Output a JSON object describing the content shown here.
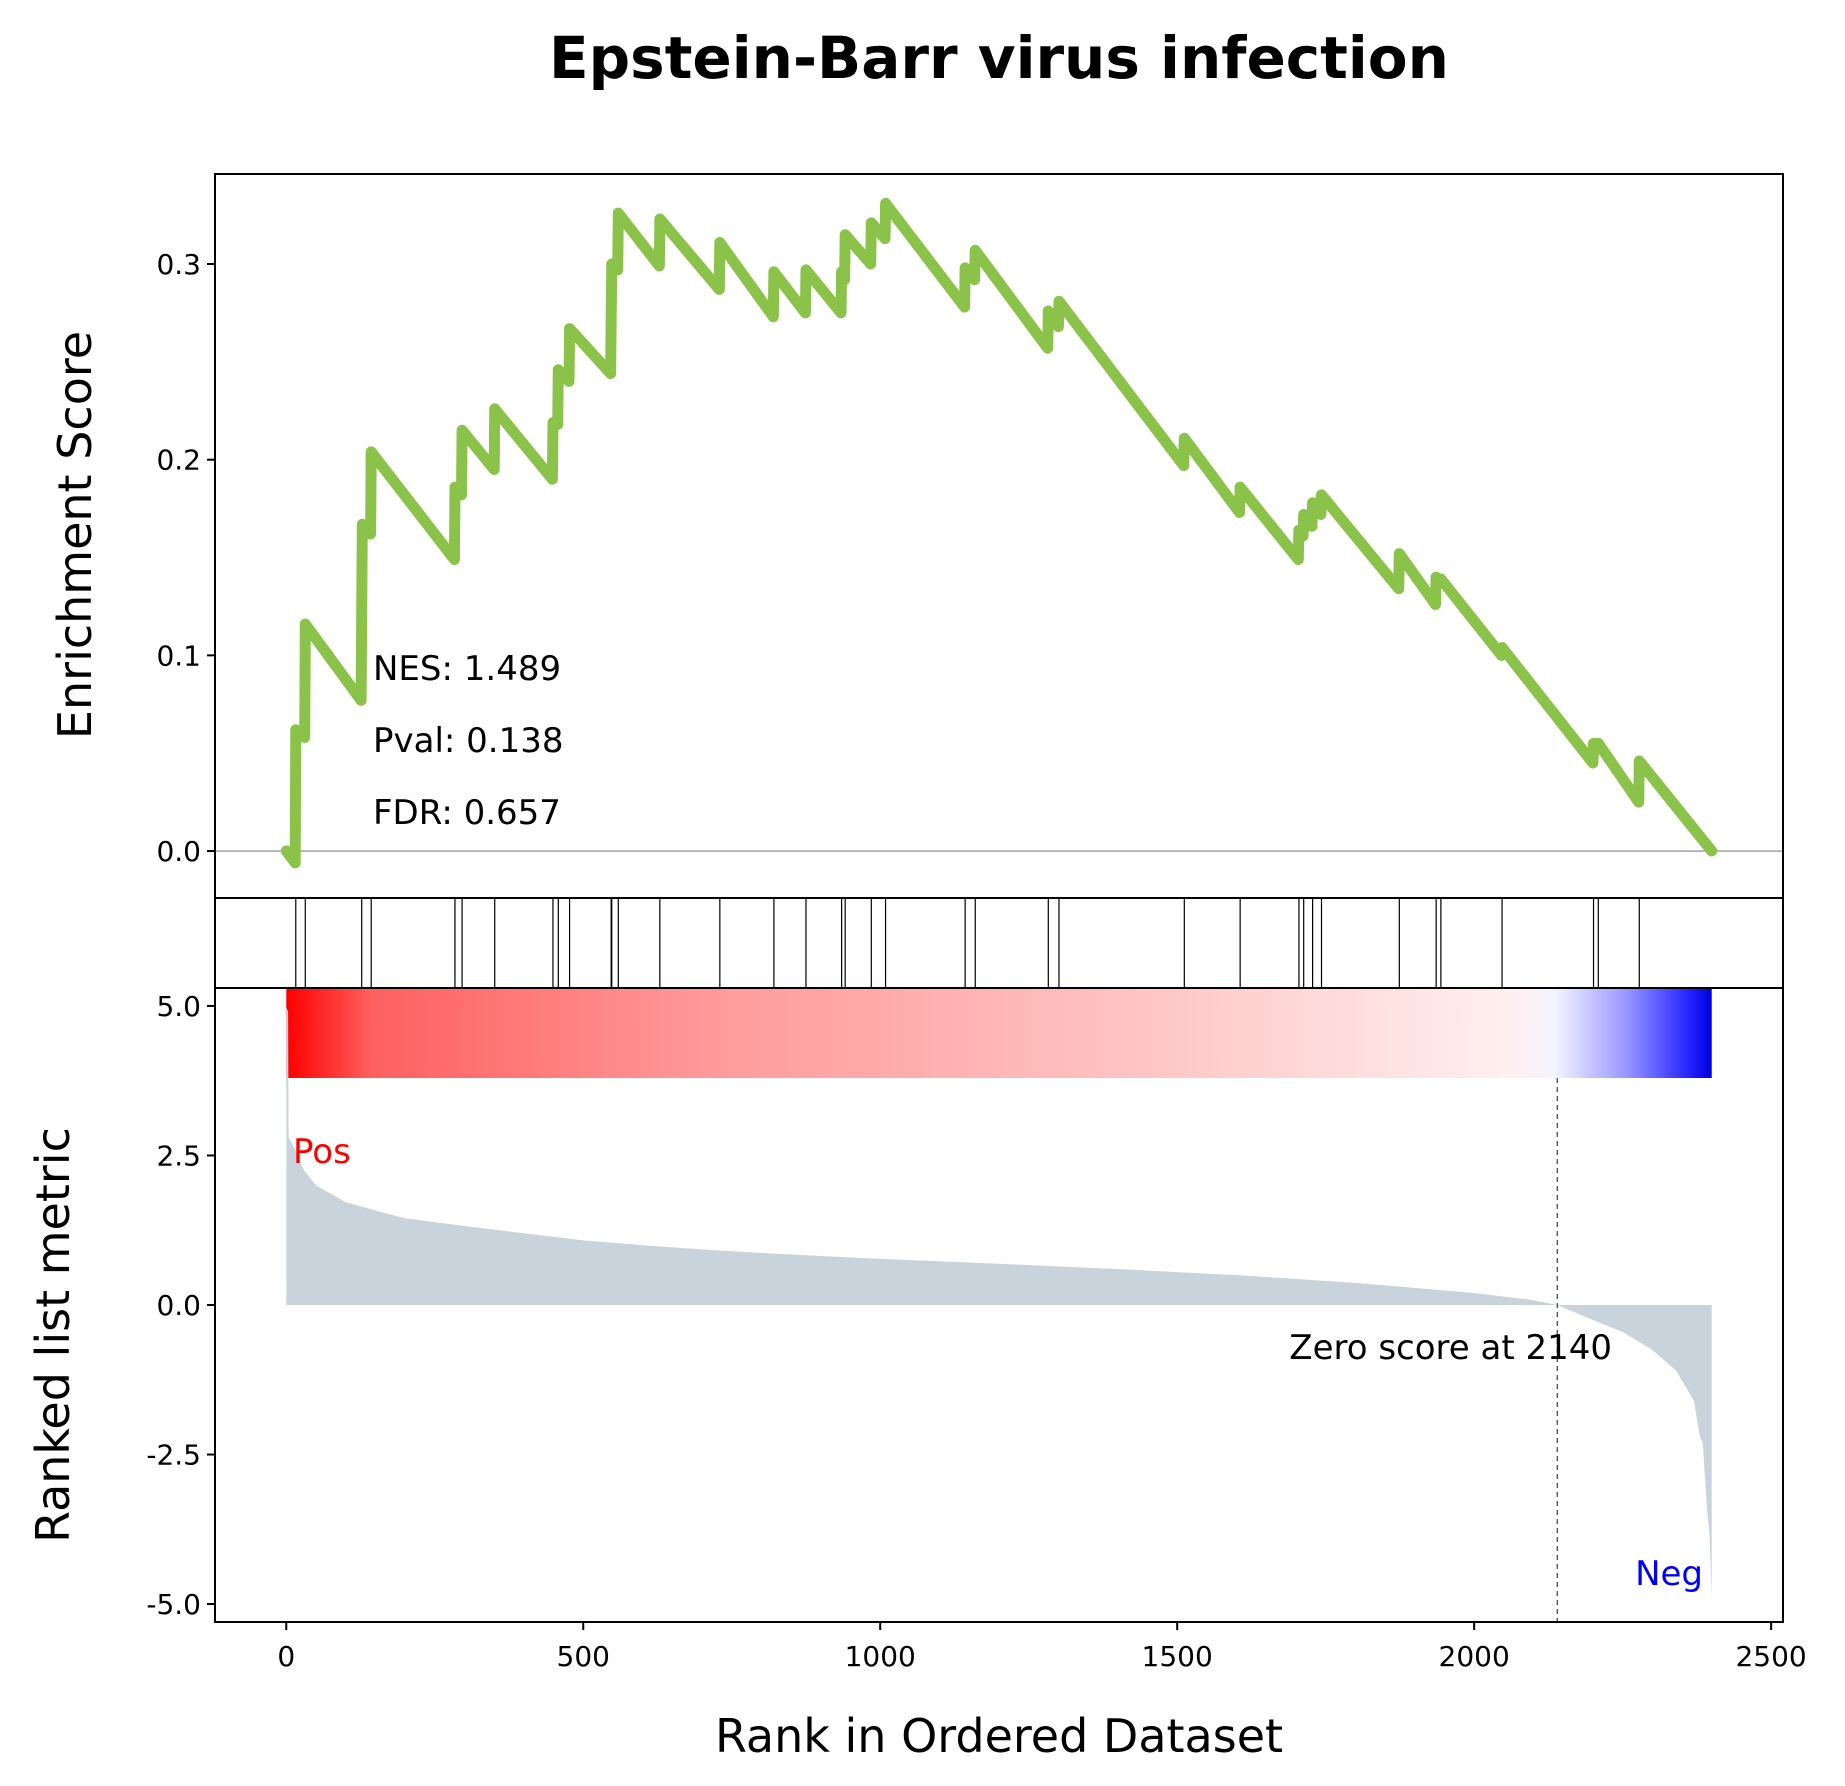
{
  "chart_data": {
    "type": "line",
    "title": "Epstein-Barr virus infection",
    "xlabel": "Rank in Ordered Dataset",
    "xlim": [
      -120,
      2520
    ],
    "xticks": [
      "0",
      "500",
      "1000",
      "1500",
      "2000",
      "2500"
    ],
    "enrichment": {
      "ylabel": "Enrichment Score",
      "ylim": [
        -0.024,
        0.346
      ],
      "yticks": [
        "0.0",
        "0.1",
        "0.2",
        "0.3"
      ],
      "line_color": "#8bc34a",
      "points": [
        [
          0,
          0.0
        ],
        [
          15,
          -0.006
        ],
        [
          16,
          0.062
        ],
        [
          31,
          0.058
        ],
        [
          32,
          0.116
        ],
        [
          126,
          0.077
        ],
        [
          127,
          0.121
        ],
        [
          128,
          0.167
        ],
        [
          142,
          0.162
        ],
        [
          143,
          0.204
        ],
        [
          283,
          0.149
        ],
        [
          284,
          0.186
        ],
        [
          295,
          0.182
        ],
        [
          296,
          0.215
        ],
        [
          350,
          0.195
        ],
        [
          351,
          0.226
        ],
        [
          448,
          0.19
        ],
        [
          449,
          0.219
        ],
        [
          457,
          0.218
        ],
        [
          458,
          0.246
        ],
        [
          476,
          0.24
        ],
        [
          477,
          0.267
        ],
        [
          546,
          0.244
        ],
        [
          547,
          0.274
        ],
        [
          548,
          0.3
        ],
        [
          558,
          0.297
        ],
        [
          559,
          0.326
        ],
        [
          628,
          0.299
        ],
        [
          629,
          0.323
        ],
        [
          729,
          0.287
        ],
        [
          730,
          0.311
        ],
        [
          820,
          0.273
        ],
        [
          821,
          0.296
        ],
        [
          874,
          0.275
        ],
        [
          875,
          0.297
        ],
        [
          934,
          0.275
        ],
        [
          935,
          0.296
        ],
        [
          940,
          0.292
        ],
        [
          941,
          0.315
        ],
        [
          984,
          0.3
        ],
        [
          985,
          0.321
        ],
        [
          1008,
          0.313
        ],
        [
          1009,
          0.331
        ],
        [
          1142,
          0.278
        ],
        [
          1143,
          0.298
        ],
        [
          1159,
          0.292
        ],
        [
          1160,
          0.307
        ],
        [
          1282,
          0.257
        ],
        [
          1283,
          0.276
        ],
        [
          1300,
          0.268
        ],
        [
          1301,
          0.281
        ],
        [
          1511,
          0.197
        ],
        [
          1512,
          0.211
        ],
        [
          1605,
          0.173
        ],
        [
          1606,
          0.186
        ],
        [
          1704,
          0.149
        ],
        [
          1705,
          0.164
        ],
        [
          1712,
          0.161
        ],
        [
          1713,
          0.172
        ],
        [
          1727,
          0.166
        ],
        [
          1728,
          0.178
        ],
        [
          1742,
          0.172
        ],
        [
          1743,
          0.182
        ],
        [
          1873,
          0.134
        ],
        [
          1874,
          0.152
        ],
        [
          1935,
          0.126
        ],
        [
          1936,
          0.14
        ],
        [
          1943,
          0.137
        ],
        [
          1944,
          0.139
        ],
        [
          2046,
          0.1
        ],
        [
          2047,
          0.104
        ],
        [
          2200,
          0.045
        ],
        [
          2201,
          0.055
        ],
        [
          2208,
          0.052
        ],
        [
          2209,
          0.055
        ],
        [
          2277,
          0.025
        ],
        [
          2278,
          0.046
        ],
        [
          2400,
          0.0
        ]
      ]
    },
    "hits": [
      16,
      32,
      127,
      143,
      284,
      296,
      351,
      449,
      458,
      477,
      547,
      548,
      559,
      629,
      730,
      821,
      875,
      935,
      941,
      985,
      1009,
      1143,
      1160,
      1283,
      1301,
      1512,
      1606,
      1705,
      1713,
      1728,
      1743,
      1874,
      1936,
      1944,
      2047,
      2201,
      2209,
      2278
    ],
    "ranked_metric": {
      "ylabel": "Ranked list metric",
      "ylim": [
        -5.3,
        5.3
      ],
      "yticks": [
        "5.0",
        "2.5",
        "0.0",
        "-2.5",
        "-5.0"
      ],
      "fill_color": "#c9d3dc",
      "points": [
        [
          0,
          4.98
        ],
        [
          3,
          4.9
        ],
        [
          4,
          2.8
        ],
        [
          15,
          2.6
        ],
        [
          30,
          2.25
        ],
        [
          50,
          2.0
        ],
        [
          100,
          1.72
        ],
        [
          150,
          1.58
        ],
        [
          200,
          1.45
        ],
        [
          300,
          1.32
        ],
        [
          400,
          1.2
        ],
        [
          500,
          1.08
        ],
        [
          600,
          1.0
        ],
        [
          700,
          0.93
        ],
        [
          800,
          0.87
        ],
        [
          900,
          0.82
        ],
        [
          1000,
          0.77
        ],
        [
          1200,
          0.69
        ],
        [
          1400,
          0.6
        ],
        [
          1600,
          0.5
        ],
        [
          1800,
          0.37
        ],
        [
          2000,
          0.2
        ],
        [
          2100,
          0.08
        ],
        [
          2140,
          0.0
        ],
        [
          2200,
          -0.25
        ],
        [
          2250,
          -0.45
        ],
        [
          2300,
          -0.75
        ],
        [
          2340,
          -1.1
        ],
        [
          2370,
          -1.6
        ],
        [
          2380,
          -2.2
        ],
        [
          2385,
          -2.3
        ],
        [
          2388,
          -2.8
        ],
        [
          2392,
          -3.4
        ],
        [
          2396,
          -3.8
        ],
        [
          2398,
          -4.3
        ],
        [
          2400,
          -4.9
        ]
      ],
      "zero_cross": 2140,
      "zero_label": "Zero score at 2140",
      "pos_label": "Pos",
      "neg_label": "Neg",
      "pos_color": "#ff0000",
      "neg_color": "#0000ff"
    },
    "stats": {
      "nes": "NES: 1.489",
      "pval": "Pval: 0.138",
      "fdr": "FDR: 0.657"
    }
  }
}
